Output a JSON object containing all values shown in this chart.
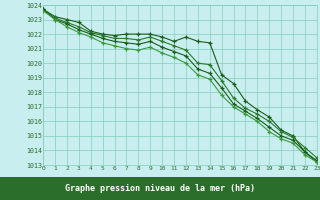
{
  "xlabel": "Graphe pression niveau de la mer (hPa)",
  "ylim": [
    1013,
    1024
  ],
  "xlim": [
    0,
    23
  ],
  "yticks": [
    1013,
    1014,
    1015,
    1016,
    1017,
    1018,
    1019,
    1020,
    1021,
    1022,
    1023,
    1024
  ],
  "xticks": [
    0,
    1,
    2,
    3,
    4,
    5,
    6,
    7,
    8,
    9,
    10,
    11,
    12,
    13,
    14,
    15,
    16,
    17,
    18,
    19,
    20,
    21,
    22,
    23
  ],
  "bg_color": "#c8eef0",
  "grid_color": "#88ccbb",
  "line_colors": [
    "#1a5c1a",
    "#2a7a2a",
    "#1a5c1a",
    "#3a9a3a"
  ],
  "xlabel_bg": "#2a6e2a",
  "xlabel_fg": "#ffffff",
  "lines": [
    [
      1023.7,
      1023.2,
      1023.0,
      1022.8,
      1022.2,
      1022.0,
      1021.9,
      1022.0,
      1022.0,
      1022.0,
      1021.8,
      1021.5,
      1021.8,
      1021.5,
      1021.4,
      1019.2,
      1018.6,
      1017.4,
      1016.8,
      1016.3,
      1015.4,
      1015.0,
      1013.9,
      1013.2
    ],
    [
      1023.7,
      1023.1,
      1022.8,
      1022.5,
      1022.1,
      1021.9,
      1021.7,
      1021.7,
      1021.6,
      1021.8,
      1021.5,
      1021.2,
      1020.9,
      1020.0,
      1019.9,
      1018.8,
      1017.6,
      1016.9,
      1016.5,
      1016.0,
      1015.3,
      1014.9,
      1014.2,
      1013.5
    ],
    [
      1023.7,
      1023.0,
      1022.7,
      1022.3,
      1022.0,
      1021.7,
      1021.5,
      1021.4,
      1021.3,
      1021.5,
      1021.1,
      1020.8,
      1020.5,
      1019.6,
      1019.3,
      1018.3,
      1017.2,
      1016.7,
      1016.2,
      1015.6,
      1015.0,
      1014.7,
      1013.9,
      1013.3
    ],
    [
      1023.6,
      1023.0,
      1022.5,
      1022.1,
      1021.8,
      1021.4,
      1021.2,
      1021.0,
      1020.9,
      1021.1,
      1020.7,
      1020.4,
      1020.0,
      1019.2,
      1018.9,
      1017.8,
      1017.0,
      1016.5,
      1016.0,
      1015.3,
      1014.8,
      1014.5,
      1013.7,
      1013.2
    ]
  ]
}
